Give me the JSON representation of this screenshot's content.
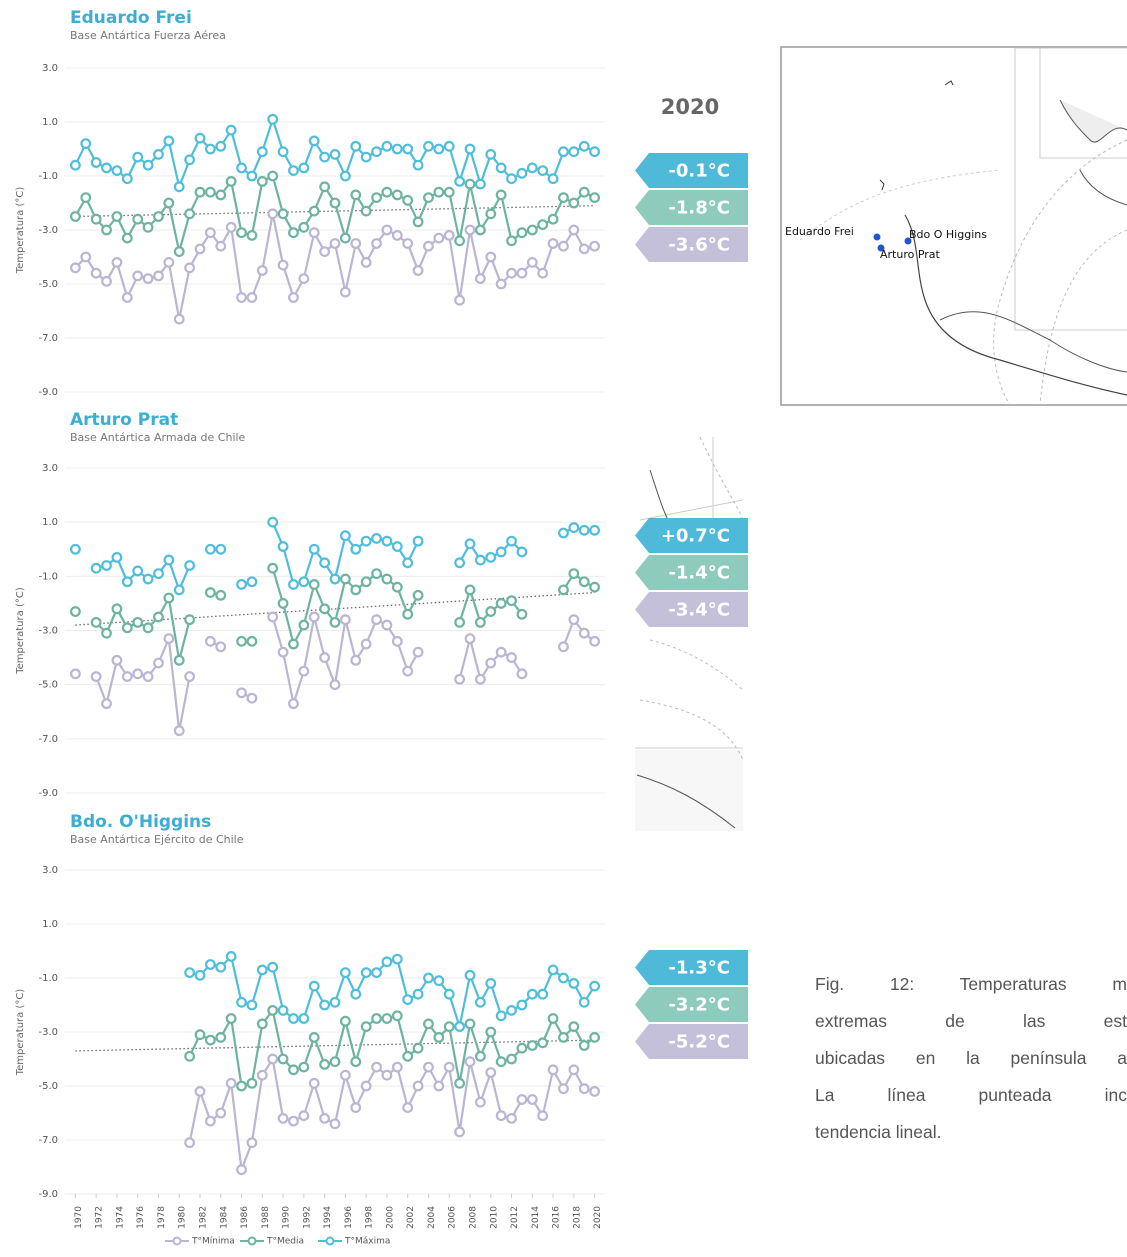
{
  "summary_heading": "2020",
  "chart_data": [
    {
      "type": "line",
      "title": "Eduardo Frei",
      "subtitle": "Base Antártica Fuerza Aérea",
      "y_label": "Temperatura (°C)",
      "x": [
        1970,
        1971,
        1972,
        1973,
        1974,
        1975,
        1976,
        1977,
        1978,
        1979,
        1980,
        1981,
        1982,
        1983,
        1984,
        1985,
        1986,
        1987,
        1988,
        1989,
        1990,
        1991,
        1992,
        1993,
        1994,
        1995,
        1996,
        1997,
        1998,
        1999,
        2000,
        2001,
        2002,
        2003,
        2004,
        2005,
        2006,
        2007,
        2008,
        2009,
        2010,
        2011,
        2012,
        2013,
        2014,
        2015,
        2016,
        2017,
        2018,
        2019,
        2020
      ],
      "xlim": [
        1969,
        2021
      ],
      "ylim": [
        -9,
        3
      ],
      "yticks": [
        {
          "value": -9,
          "label": "-9.0"
        },
        {
          "value": -7,
          "label": "-7.0"
        },
        {
          "value": -5,
          "label": "-5.0"
        },
        {
          "value": -3,
          "label": "-3.0"
        },
        {
          "value": -1,
          "label": "-1.0"
        },
        {
          "value": 1,
          "label": "1.0"
        },
        {
          "value": 3,
          "label": "3.0"
        }
      ],
      "grid": true,
      "series": [
        {
          "color": "#bbb5d4",
          "values": [
            -4.4,
            -4.0,
            -4.6,
            -4.9,
            -4.2,
            -5.5,
            -4.7,
            -4.8,
            -4.7,
            -4.2,
            -6.3,
            -4.4,
            -3.7,
            -3.1,
            -3.6,
            -2.9,
            -5.5,
            -5.5,
            -4.5,
            -2.4,
            -4.3,
            -5.5,
            -4.8,
            -3.1,
            -3.8,
            -3.5,
            -5.3,
            -3.5,
            -4.2,
            -3.5,
            -3.0,
            -3.2,
            -3.5,
            -4.5,
            -3.6,
            -3.3,
            -3.2,
            -5.6,
            -3.0,
            -4.8,
            -4.0,
            -5.0,
            -4.6,
            -4.6,
            -4.2,
            -4.6,
            -3.5,
            -3.6,
            -3.0,
            -3.7,
            -3.6
          ]
        },
        {
          "color": "#6db3a1",
          "values": [
            -2.5,
            -1.8,
            -2.6,
            -3.0,
            -2.5,
            -3.3,
            -2.6,
            -2.9,
            -2.5,
            -2.0,
            -3.8,
            -2.4,
            -1.6,
            -1.6,
            -1.7,
            -1.2,
            -3.1,
            -3.2,
            -1.2,
            -1.0,
            -2.4,
            -3.1,
            -2.9,
            -2.3,
            -1.4,
            -2.0,
            -3.3,
            -1.7,
            -2.3,
            -1.8,
            -1.6,
            -1.7,
            -1.9,
            -2.7,
            -1.8,
            -1.6,
            -1.6,
            -3.4,
            -1.3,
            -3.0,
            -2.4,
            -1.7,
            -3.4,
            -3.1,
            -3.0,
            -2.8,
            -2.6,
            -1.8,
            -2.0,
            -1.6,
            -1.8
          ]
        },
        {
          "color": "#4fbedb",
          "values": [
            -0.6,
            0.2,
            -0.5,
            -0.7,
            -0.8,
            -1.1,
            -0.3,
            -0.6,
            -0.2,
            0.3,
            -1.4,
            -0.4,
            0.4,
            0.0,
            0.1,
            0.7,
            -0.7,
            -1.0,
            -0.1,
            1.1,
            -0.1,
            -0.8,
            -0.7,
            0.3,
            -0.3,
            -0.2,
            -1.0,
            0.1,
            -0.3,
            -0.1,
            0.1,
            0.0,
            0.0,
            -0.6,
            0.1,
            0.0,
            0.1,
            -1.2,
            0.0,
            -1.3,
            -0.2,
            -0.7,
            -1.1,
            -0.9,
            -0.7,
            -0.8,
            -1.1,
            -0.1,
            -0.1,
            0.1,
            -0.1
          ]
        }
      ],
      "trend": {
        "x": [
          1970,
          2020
        ],
        "values": [
          -2.5,
          -2.1
        ]
      },
      "badges": [
        "-0.1°C",
        "-1.8°C",
        "-3.6°C"
      ]
    },
    {
      "type": "line",
      "title": "Arturo Prat",
      "subtitle": "Base Antártica Armada de Chile",
      "y_label": "Temperatura (°C)",
      "x": [
        1970,
        1971,
        1972,
        1973,
        1974,
        1975,
        1976,
        1977,
        1978,
        1979,
        1980,
        1981,
        1982,
        1983,
        1984,
        1985,
        1986,
        1987,
        1988,
        1989,
        1990,
        1991,
        1992,
        1993,
        1994,
        1995,
        1996,
        1997,
        1998,
        1999,
        2000,
        2001,
        2002,
        2003,
        2004,
        2005,
        2006,
        2007,
        2008,
        2009,
        2010,
        2011,
        2012,
        2013,
        2014,
        2015,
        2016,
        2017,
        2018,
        2019,
        2020
      ],
      "xlim": [
        1969,
        2021
      ],
      "ylim": [
        -9,
        3
      ],
      "yticks": [
        {
          "value": -9,
          "label": "-9.0"
        },
        {
          "value": -7,
          "label": "-7.0"
        },
        {
          "value": -5,
          "label": "-5.0"
        },
        {
          "value": -3,
          "label": "-3.0"
        },
        {
          "value": -1,
          "label": "-1.0"
        },
        {
          "value": 1,
          "label": "1.0"
        },
        {
          "value": 3,
          "label": "3.0"
        }
      ],
      "grid": true,
      "series": [
        {
          "color": "#bbb5d4",
          "values": [
            -4.6,
            null,
            -4.7,
            -5.7,
            -4.1,
            -4.7,
            -4.6,
            -4.7,
            -4.2,
            -3.3,
            -6.7,
            -4.7,
            null,
            -3.4,
            -3.6,
            null,
            -5.3,
            -5.5,
            null,
            -2.5,
            -3.8,
            -5.7,
            -4.5,
            -2.5,
            -4.0,
            -5.0,
            -2.6,
            -4.1,
            -3.5,
            -2.6,
            -2.8,
            -3.4,
            -4.5,
            -3.8,
            null,
            null,
            null,
            -4.8,
            -3.3,
            -4.8,
            -4.2,
            -3.8,
            -4.0,
            -4.6,
            null,
            null,
            null,
            -3.6,
            -2.6,
            -3.1,
            -3.4
          ]
        },
        {
          "color": "#6db3a1",
          "values": [
            -2.3,
            null,
            -2.7,
            -3.1,
            -2.2,
            -2.9,
            -2.7,
            -2.9,
            -2.5,
            -1.8,
            -4.1,
            -2.6,
            null,
            -1.6,
            -1.7,
            null,
            -3.4,
            -3.4,
            null,
            -0.7,
            -2.0,
            -3.5,
            -2.8,
            -1.3,
            -2.2,
            -2.7,
            -1.1,
            -1.5,
            -1.2,
            -0.9,
            -1.1,
            -1.4,
            -2.4,
            -1.7,
            null,
            null,
            null,
            -2.7,
            -1.5,
            -2.7,
            -2.3,
            -2.0,
            -1.9,
            -2.4,
            null,
            null,
            null,
            -1.5,
            -0.9,
            -1.2,
            -1.4
          ]
        },
        {
          "color": "#4fbedb",
          "values": [
            0.0,
            null,
            -0.7,
            -0.6,
            -0.3,
            -1.2,
            -0.8,
            -1.1,
            -0.9,
            -0.4,
            -1.5,
            -0.6,
            null,
            0.0,
            0.0,
            null,
            -1.3,
            -1.2,
            null,
            1.0,
            0.1,
            -1.3,
            -1.2,
            0.0,
            -0.5,
            -1.1,
            0.5,
            0.0,
            0.3,
            0.4,
            0.3,
            0.1,
            -0.5,
            0.3,
            null,
            null,
            null,
            -0.5,
            0.2,
            -0.4,
            -0.3,
            -0.1,
            0.3,
            -0.1,
            null,
            null,
            null,
            0.6,
            0.8,
            0.7,
            0.7
          ]
        }
      ],
      "trend": {
        "x": [
          1970,
          2020
        ],
        "values": [
          -2.8,
          -1.6
        ]
      },
      "badges": [
        "+0.7°C",
        "-1.4°C",
        "-3.4°C"
      ]
    },
    {
      "type": "line",
      "title": "Bdo. O'Higgins",
      "subtitle": "Base Antártica Ejército de Chile",
      "y_label": "Temperatura (°C)",
      "x": [
        1970,
        1971,
        1972,
        1973,
        1974,
        1975,
        1976,
        1977,
        1978,
        1979,
        1980,
        1981,
        1982,
        1983,
        1984,
        1985,
        1986,
        1987,
        1988,
        1989,
        1990,
        1991,
        1992,
        1993,
        1994,
        1995,
        1996,
        1997,
        1998,
        1999,
        2000,
        2001,
        2002,
        2003,
        2004,
        2005,
        2006,
        2007,
        2008,
        2009,
        2010,
        2011,
        2012,
        2013,
        2014,
        2015,
        2016,
        2017,
        2018,
        2019,
        2020
      ],
      "xlim": [
        1969,
        2021
      ],
      "ylim": [
        -9,
        3
      ],
      "xticks": [
        1970,
        1972,
        1974,
        1976,
        1978,
        1980,
        1982,
        1984,
        1986,
        1988,
        1990,
        1992,
        1994,
        1996,
        1998,
        2000,
        2002,
        2004,
        2006,
        2008,
        2010,
        2012,
        2014,
        2016,
        2018,
        2020
      ],
      "yticks": [
        {
          "value": -9,
          "label": "-9.0"
        },
        {
          "value": -7,
          "label": "-7.0"
        },
        {
          "value": -5,
          "label": "-5.0"
        },
        {
          "value": -3,
          "label": "-3.0"
        },
        {
          "value": -1,
          "label": "-1.0"
        },
        {
          "value": 1,
          "label": "1.0"
        },
        {
          "value": 3,
          "label": "3.0"
        }
      ],
      "grid": true,
      "series": [
        {
          "name": "T°Mínima",
          "color": "#bbb5d4",
          "values": [
            null,
            null,
            null,
            null,
            null,
            null,
            null,
            null,
            null,
            null,
            null,
            -7.1,
            -5.2,
            -6.3,
            -6.0,
            -4.9,
            -8.1,
            -7.1,
            -4.6,
            -4.0,
            -6.2,
            -6.3,
            -6.1,
            -4.9,
            -6.2,
            -6.4,
            -4.6,
            -5.8,
            -5.0,
            -4.3,
            -4.6,
            -4.3,
            -5.8,
            -5.0,
            -4.3,
            -5.0,
            -4.3,
            -6.7,
            -4.1,
            -5.6,
            -4.5,
            -6.1,
            -6.2,
            -5.5,
            -5.5,
            -6.1,
            -4.4,
            -5.1,
            -4.4,
            -5.1,
            -5.2
          ]
        },
        {
          "name": "T°Media",
          "color": "#6db3a1",
          "values": [
            null,
            null,
            null,
            null,
            null,
            null,
            null,
            null,
            null,
            null,
            null,
            -3.9,
            -3.1,
            -3.3,
            -3.2,
            -2.5,
            -5.0,
            -4.9,
            -2.7,
            -2.2,
            -4.0,
            -4.4,
            -4.3,
            -3.2,
            -4.2,
            -4.1,
            -2.6,
            -4.1,
            -2.8,
            -2.5,
            -2.5,
            -2.4,
            -3.9,
            -3.6,
            -2.7,
            -3.2,
            -2.8,
            -4.9,
            -2.7,
            -3.9,
            -3.0,
            -4.1,
            -4.0,
            -3.6,
            -3.5,
            -3.4,
            -2.5,
            -3.2,
            -2.8,
            -3.5,
            -3.2
          ]
        },
        {
          "name": "T°Máxima",
          "color": "#4fbedb",
          "values": [
            null,
            null,
            null,
            null,
            null,
            null,
            null,
            null,
            null,
            null,
            null,
            -0.8,
            -0.9,
            -0.5,
            -0.6,
            -0.2,
            -1.9,
            -2.0,
            -0.7,
            -0.6,
            -2.2,
            -2.5,
            -2.5,
            -1.3,
            -2.0,
            -1.9,
            -0.8,
            -1.6,
            -0.8,
            -0.8,
            -0.4,
            -0.3,
            -1.8,
            -1.6,
            -1.0,
            -1.1,
            -1.6,
            -2.8,
            -0.9,
            -1.9,
            -1.2,
            -2.4,
            -2.2,
            -2.0,
            -1.6,
            -1.6,
            -0.7,
            -1.0,
            -1.2,
            -1.9,
            -1.3
          ]
        }
      ],
      "trend": {
        "x": [
          1970,
          2020
        ],
        "values": [
          -3.7,
          -3.3
        ]
      },
      "badges": [
        "-1.3°C",
        "-3.2°C",
        "-5.2°C"
      ]
    }
  ],
  "map": {
    "labels": [
      "Eduardo Frei",
      "Bdo O Higgins",
      "Arturo Prat"
    ]
  },
  "caption": [
    "Fig. 12:  Temperaturas m",
    "extremas de las est",
    "ubicadas en la península a",
    "La línea punteada inc",
    "tendencia lineal."
  ]
}
